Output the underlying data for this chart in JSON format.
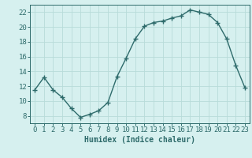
{
  "x": [
    0,
    1,
    2,
    3,
    4,
    5,
    6,
    7,
    8,
    9,
    10,
    11,
    12,
    13,
    14,
    15,
    16,
    17,
    18,
    19,
    20,
    21,
    22,
    23
  ],
  "y": [
    11.5,
    13.2,
    11.5,
    10.5,
    9.0,
    7.8,
    8.2,
    8.7,
    9.8,
    13.3,
    15.8,
    18.4,
    20.1,
    20.6,
    20.8,
    21.2,
    21.5,
    22.3,
    22.0,
    21.7,
    20.6,
    18.4,
    14.8,
    11.8
  ],
  "line_color": "#2e6b6b",
  "bg_color": "#d6f0ef",
  "grid_color": "#b8dbd9",
  "xlabel": "Humidex (Indice chaleur)",
  "xlim": [
    -0.5,
    23.5
  ],
  "ylim": [
    7,
    23
  ],
  "yticks": [
    8,
    10,
    12,
    14,
    16,
    18,
    20,
    22
  ],
  "xticks": [
    0,
    1,
    2,
    3,
    4,
    5,
    6,
    7,
    8,
    9,
    10,
    11,
    12,
    13,
    14,
    15,
    16,
    17,
    18,
    19,
    20,
    21,
    22,
    23
  ],
  "marker": "+",
  "markersize": 4,
  "linewidth": 1.0,
  "xlabel_fontsize": 7,
  "tick_fontsize": 6.5
}
